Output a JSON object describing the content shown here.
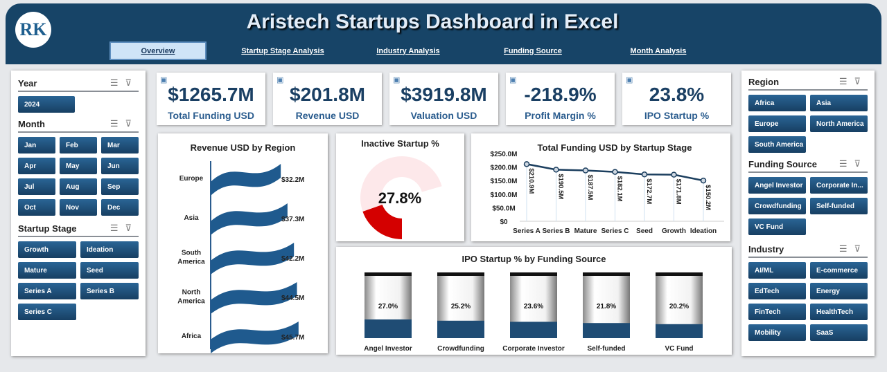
{
  "header": {
    "title": "Aristech Startups Dashboard in Excel",
    "logo_text": "RK",
    "tabs": [
      {
        "label": "Overview",
        "active": true
      },
      {
        "label": "Startup Stage Analysis"
      },
      {
        "label": "Industry Analysis"
      },
      {
        "label": "Funding Source"
      },
      {
        "label": "Month Analysis"
      }
    ]
  },
  "left": {
    "year": {
      "title": "Year",
      "items": [
        "2024"
      ]
    },
    "month": {
      "title": "Month",
      "items": [
        "Jan",
        "Feb",
        "Mar",
        "Apr",
        "May",
        "Jun",
        "Jul",
        "Aug",
        "Sep",
        "Oct",
        "Nov",
        "Dec"
      ]
    },
    "stage": {
      "title": "Startup Stage",
      "items": [
        "Growth",
        "Ideation",
        "Mature",
        "Seed",
        "Series A",
        "Series B",
        "Series C"
      ]
    }
  },
  "right": {
    "region": {
      "title": "Region",
      "items": [
        "Africa",
        "Asia",
        "Europe",
        "North America",
        "South America"
      ]
    },
    "funding": {
      "title": "Funding Source",
      "items": [
        "Angel Investor",
        "Corporate In...",
        "Crowdfunding",
        "Self-funded",
        "VC Fund"
      ]
    },
    "industry": {
      "title": "Industry",
      "items": [
        "AI/ML",
        "E-commerce",
        "EdTech",
        "Energy",
        "FinTech",
        "HealthTech",
        "Mobility",
        "SaaS"
      ]
    }
  },
  "kpis": [
    {
      "value": "$1265.7M",
      "label": "Total Funding USD",
      "icon": "money-gear-icon"
    },
    {
      "value": "$201.8M",
      "label": "Revenue USD",
      "icon": "revenue-chart-icon"
    },
    {
      "value": "$3919.8M",
      "label": "Valuation USD",
      "icon": "valuation-icon"
    },
    {
      "value": "-218.9%",
      "label": "Profit Margin %",
      "icon": "profit-icon"
    },
    {
      "value": "23.8%",
      "label": "IPO Startup %",
      "icon": "ipo-icon"
    }
  ],
  "colors": {
    "header": "#174467",
    "button": "#1f5282",
    "accent_red": "#d40000"
  },
  "chart_data": [
    {
      "type": "bar",
      "title": "Revenue USD by Region",
      "categories": [
        "Europe",
        "Asia",
        "South America",
        "North America",
        "Africa"
      ],
      "values": [
        32.2,
        37.3,
        42.2,
        44.5,
        45.7
      ],
      "labels": [
        "$32.2M",
        "$37.3M",
        "$42.2M",
        "$44.5M",
        "$45.7M"
      ]
    },
    {
      "type": "pie",
      "title": "Inactive Startup %",
      "value": 27.8,
      "label": "27.8%"
    },
    {
      "type": "line",
      "title": "Total Funding USD by Startup Stage",
      "categories": [
        "Series A",
        "Series B",
        "Mature",
        "Series C",
        "Seed",
        "Growth",
        "Ideation"
      ],
      "values": [
        210.9,
        190.5,
        187.5,
        182.1,
        172.7,
        171.8,
        150.2
      ],
      "labels": [
        "$210.9M",
        "$190.5M",
        "$187.5M",
        "$182.1M",
        "$172.7M",
        "$171.8M",
        "$150.2M"
      ],
      "yticks": [
        "$0",
        "$50.0M",
        "$100.0M",
        "$150.0M",
        "$200.0M",
        "$250.0M"
      ],
      "ylim": [
        0,
        250
      ]
    },
    {
      "type": "bar",
      "title": "IPO Startup % by Funding Source",
      "categories": [
        "Angel Investor",
        "Crowdfunding",
        "Corporate Investor",
        "Self-funded",
        "VC Fund"
      ],
      "values": [
        27.0,
        25.2,
        23.6,
        21.8,
        20.2
      ],
      "labels": [
        "27.0%",
        "25.2%",
        "23.6%",
        "21.8%",
        "20.2%"
      ]
    }
  ]
}
